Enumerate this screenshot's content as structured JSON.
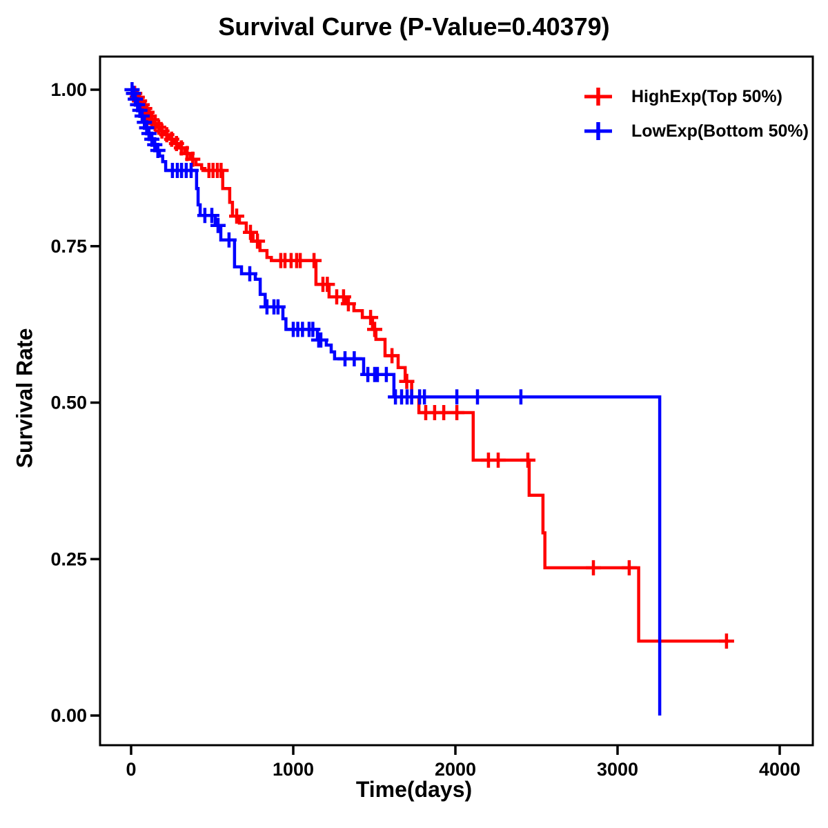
{
  "chart_data": {
    "type": "line",
    "subtype": "kaplan-meier-survival",
    "title": "Survival Curve (P-Value=0.40379)",
    "p_value": 0.40379,
    "xlabel": "Time(days)",
    "ylabel": "Survival Rate",
    "xlim": [
      0,
      4000
    ],
    "ylim": [
      0.0,
      1.0
    ],
    "xticks": [
      0,
      1000,
      2000,
      3000,
      4000
    ],
    "xtick_labels": [
      "0",
      "1000",
      "2000",
      "3000",
      "4000"
    ],
    "yticks": [
      0.0,
      0.25,
      0.5,
      0.75,
      1.0
    ],
    "ytick_labels": [
      "0.00",
      "0.25",
      "0.50",
      "0.75",
      "1.00"
    ],
    "grid": false,
    "legend_position": "top-right-inside",
    "background": "#FFFFFF",
    "axis_color": "#000000",
    "series": [
      {
        "name": "HighExp(Top 50%)",
        "color": "#FF0000",
        "marker": "plus-censor",
        "steps": [
          [
            0,
            1.0
          ],
          [
            15,
            0.994
          ],
          [
            30,
            0.988
          ],
          [
            45,
            0.982
          ],
          [
            60,
            0.976
          ],
          [
            75,
            0.97
          ],
          [
            90,
            0.964
          ],
          [
            105,
            0.958
          ],
          [
            120,
            0.952
          ],
          [
            138,
            0.946
          ],
          [
            158,
            0.94
          ],
          [
            180,
            0.934
          ],
          [
            205,
            0.928
          ],
          [
            235,
            0.921
          ],
          [
            265,
            0.914
          ],
          [
            295,
            0.907
          ],
          [
            330,
            0.898
          ],
          [
            365,
            0.889
          ],
          [
            400,
            0.88
          ],
          [
            435,
            0.874
          ],
          [
            455,
            0.871
          ],
          [
            565,
            0.842
          ],
          [
            608,
            0.82
          ],
          [
            625,
            0.798
          ],
          [
            668,
            0.787
          ],
          [
            710,
            0.772
          ],
          [
            752,
            0.758
          ],
          [
            795,
            0.743
          ],
          [
            838,
            0.732
          ],
          [
            865,
            0.727
          ],
          [
            1140,
            0.689
          ],
          [
            1221,
            0.669
          ],
          [
            1327,
            0.658
          ],
          [
            1374,
            0.647
          ],
          [
            1426,
            0.636
          ],
          [
            1489,
            0.617
          ],
          [
            1510,
            0.601
          ],
          [
            1566,
            0.575
          ],
          [
            1647,
            0.556
          ],
          [
            1690,
            0.534
          ],
          [
            1730,
            0.509
          ],
          [
            1775,
            0.484
          ],
          [
            2110,
            0.408
          ],
          [
            2455,
            0.352
          ],
          [
            2540,
            0.292
          ],
          [
            2552,
            0.236
          ],
          [
            3130,
            0.119
          ],
          [
            3690,
            0.119
          ]
        ],
        "censor_marks": [
          [
            22,
            0.994
          ],
          [
            38,
            0.988
          ],
          [
            52,
            0.982
          ],
          [
            68,
            0.976
          ],
          [
            84,
            0.97
          ],
          [
            98,
            0.964
          ],
          [
            112,
            0.958
          ],
          [
            128,
            0.952
          ],
          [
            148,
            0.946
          ],
          [
            170,
            0.94
          ],
          [
            190,
            0.934
          ],
          [
            220,
            0.928
          ],
          [
            250,
            0.921
          ],
          [
            280,
            0.914
          ],
          [
            310,
            0.907
          ],
          [
            345,
            0.898
          ],
          [
            380,
            0.889
          ],
          [
            480,
            0.871
          ],
          [
            505,
            0.871
          ],
          [
            532,
            0.871
          ],
          [
            555,
            0.871
          ],
          [
            651,
            0.798
          ],
          [
            736,
            0.772
          ],
          [
            779,
            0.758
          ],
          [
            923,
            0.727
          ],
          [
            949,
            0.727
          ],
          [
            987,
            0.727
          ],
          [
            1021,
            0.727
          ],
          [
            1043,
            0.727
          ],
          [
            1128,
            0.727
          ],
          [
            1183,
            0.689
          ],
          [
            1210,
            0.689
          ],
          [
            1268,
            0.669
          ],
          [
            1310,
            0.669
          ],
          [
            1340,
            0.658
          ],
          [
            1477,
            0.636
          ],
          [
            1502,
            0.617
          ],
          [
            1609,
            0.575
          ],
          [
            1700,
            0.534
          ],
          [
            1817,
            0.484
          ],
          [
            1872,
            0.484
          ],
          [
            1928,
            0.484
          ],
          [
            2009,
            0.484
          ],
          [
            2204,
            0.408
          ],
          [
            2264,
            0.408
          ],
          [
            2447,
            0.408
          ],
          [
            2851,
            0.236
          ],
          [
            3072,
            0.236
          ],
          [
            3672,
            0.119
          ]
        ]
      },
      {
        "name": "LowExp(Bottom 50%)",
        "color": "#0000FF",
        "marker": "plus-censor",
        "steps": [
          [
            0,
            1.0
          ],
          [
            10,
            0.994
          ],
          [
            20,
            0.985
          ],
          [
            32,
            0.976
          ],
          [
            46,
            0.967
          ],
          [
            60,
            0.958
          ],
          [
            74,
            0.948
          ],
          [
            88,
            0.939
          ],
          [
            102,
            0.93
          ],
          [
            118,
            0.921
          ],
          [
            136,
            0.912
          ],
          [
            155,
            0.903
          ],
          [
            175,
            0.894
          ],
          [
            195,
            0.885
          ],
          [
            213,
            0.871
          ],
          [
            404,
            0.842
          ],
          [
            413,
            0.816
          ],
          [
            426,
            0.799
          ],
          [
            519,
            0.783
          ],
          [
            553,
            0.76
          ],
          [
            638,
            0.717
          ],
          [
            681,
            0.706
          ],
          [
            766,
            0.697
          ],
          [
            796,
            0.673
          ],
          [
            827,
            0.653
          ],
          [
            936,
            0.634
          ],
          [
            955,
            0.617
          ],
          [
            1149,
            0.6
          ],
          [
            1204,
            0.592
          ],
          [
            1234,
            0.581
          ],
          [
            1255,
            0.57
          ],
          [
            1434,
            0.545
          ],
          [
            1621,
            0.509
          ],
          [
            3260,
            0.0
          ]
        ],
        "censor_marks": [
          [
            6,
            1.0
          ],
          [
            15,
            0.994
          ],
          [
            26,
            0.985
          ],
          [
            40,
            0.976
          ],
          [
            54,
            0.967
          ],
          [
            68,
            0.958
          ],
          [
            82,
            0.948
          ],
          [
            96,
            0.939
          ],
          [
            110,
            0.93
          ],
          [
            128,
            0.921
          ],
          [
            146,
            0.912
          ],
          [
            165,
            0.903
          ],
          [
            255,
            0.871
          ],
          [
            285,
            0.871
          ],
          [
            311,
            0.871
          ],
          [
            340,
            0.871
          ],
          [
            370,
            0.871
          ],
          [
            455,
            0.799
          ],
          [
            498,
            0.799
          ],
          [
            536,
            0.783
          ],
          [
            604,
            0.76
          ],
          [
            732,
            0.706
          ],
          [
            838,
            0.653
          ],
          [
            881,
            0.653
          ],
          [
            906,
            0.653
          ],
          [
            1000,
            0.617
          ],
          [
            1028,
            0.617
          ],
          [
            1057,
            0.617
          ],
          [
            1098,
            0.617
          ],
          [
            1121,
            0.617
          ],
          [
            1157,
            0.6
          ],
          [
            1170,
            0.6
          ],
          [
            1319,
            0.57
          ],
          [
            1376,
            0.57
          ],
          [
            1460,
            0.545
          ],
          [
            1502,
            0.545
          ],
          [
            1519,
            0.545
          ],
          [
            1574,
            0.545
          ],
          [
            1630,
            0.509
          ],
          [
            1668,
            0.509
          ],
          [
            1702,
            0.509
          ],
          [
            1730,
            0.509
          ],
          [
            1779,
            0.509
          ],
          [
            1809,
            0.509
          ],
          [
            2009,
            0.509
          ],
          [
            2136,
            0.509
          ],
          [
            2404,
            0.509
          ]
        ]
      }
    ]
  }
}
